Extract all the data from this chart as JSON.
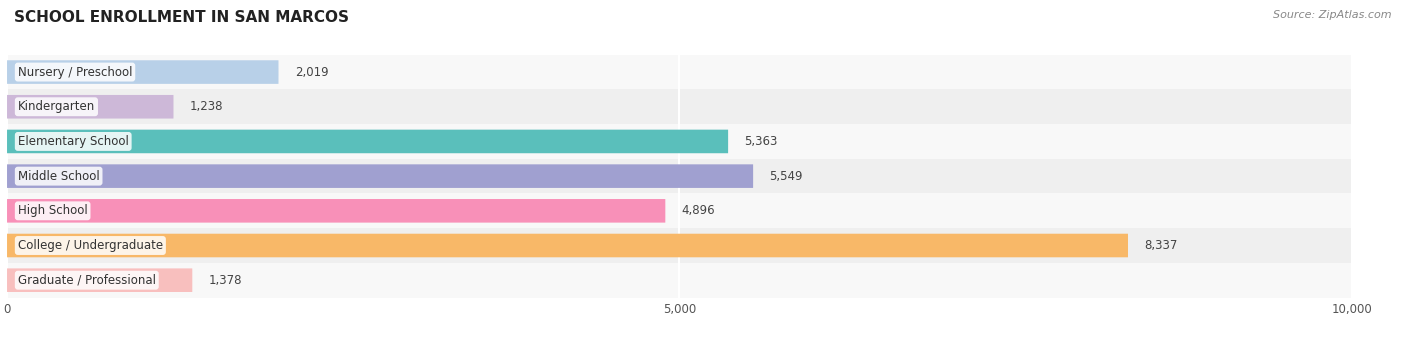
{
  "title": "SCHOOL ENROLLMENT IN SAN MARCOS",
  "source": "Source: ZipAtlas.com",
  "categories": [
    "Nursery / Preschool",
    "Kindergarten",
    "Elementary School",
    "Middle School",
    "High School",
    "College / Undergraduate",
    "Graduate / Professional"
  ],
  "values": [
    2019,
    1238,
    5363,
    5549,
    4896,
    8337,
    1378
  ],
  "bar_colors": [
    "#b8d0e8",
    "#cdb8d8",
    "#5abfbb",
    "#a0a0d0",
    "#f890b8",
    "#f8b868",
    "#f8bfbe"
  ],
  "xlim": [
    0,
    10000
  ],
  "xticks": [
    0,
    5000,
    10000
  ],
  "xtick_labels": [
    "0",
    "5,000",
    "10,000"
  ],
  "bar_height": 0.68,
  "row_bg_even": "#f8f8f8",
  "row_bg_odd": "#efefef",
  "title_fontsize": 11,
  "label_fontsize": 8.5,
  "value_fontsize": 8.5,
  "source_fontsize": 8
}
